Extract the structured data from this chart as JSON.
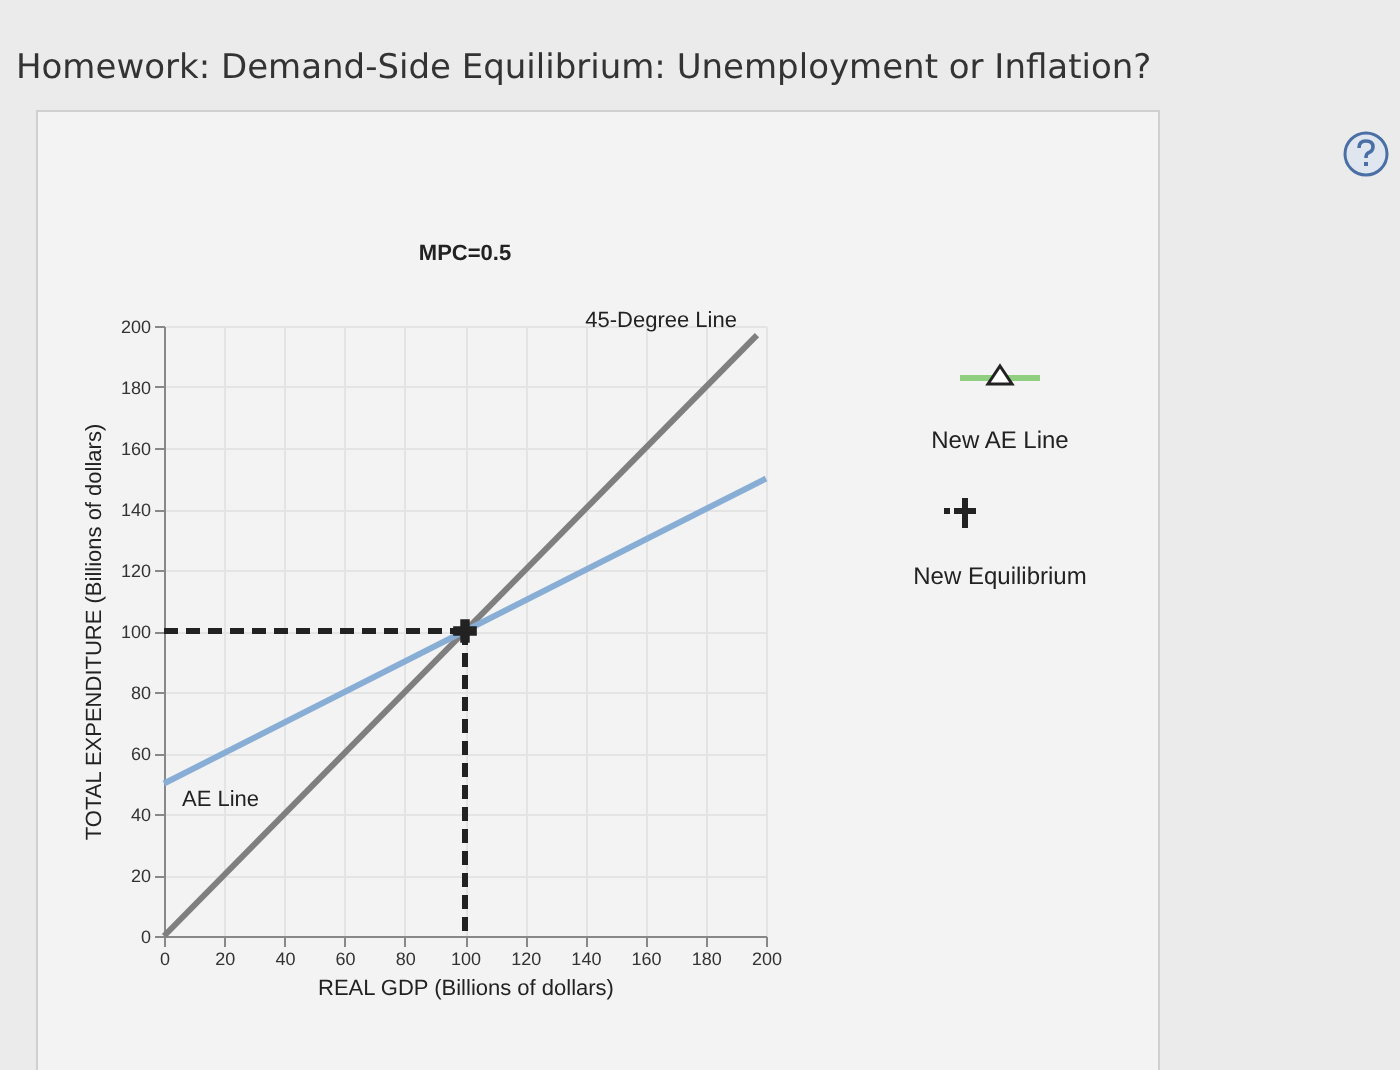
{
  "chart_data": {
    "type": "line",
    "title": "Homework: Demand-Side Equilibrium: Unemployment or Inflation?",
    "subtitle": "MPC=0.5",
    "xlabel": "REAL GDP (Billions of dollars)",
    "ylabel": "TOTAL EXPENDITURE (Billions of dollars)",
    "xlim": [
      0,
      200
    ],
    "xticks": [
      0,
      20,
      40,
      60,
      80,
      100,
      120,
      140,
      160,
      180,
      200
    ],
    "ylim": [
      0,
      200
    ],
    "yticks": [
      0,
      20,
      40,
      60,
      80,
      100,
      120,
      140,
      160,
      180,
      200
    ],
    "grid": true,
    "annotations": [
      "New AE Line",
      "New Equilibrium"
    ],
    "series": [
      {
        "name": "45-Degree Line",
        "color": "#7f7f7f",
        "x": [
          0,
          197
        ],
        "values": [
          0,
          197
        ]
      },
      {
        "name": "AE Line",
        "color": "#88aed6",
        "x": [
          0,
          200
        ],
        "values": [
          50,
          150
        ]
      },
      {
        "color": "#222222",
        "line_style": "dashed",
        "x": [
          0,
          100
        ],
        "values": [
          100,
          100
        ]
      },
      {
        "color": "#222222",
        "line_style": "dashed",
        "x": [
          100,
          100
        ],
        "values": [
          100,
          0
        ]
      },
      {
        "type": "scatter",
        "color": "#222222",
        "marker": "cross",
        "x": [
          100
        ],
        "values": [
          100
        ]
      }
    ]
  }
}
